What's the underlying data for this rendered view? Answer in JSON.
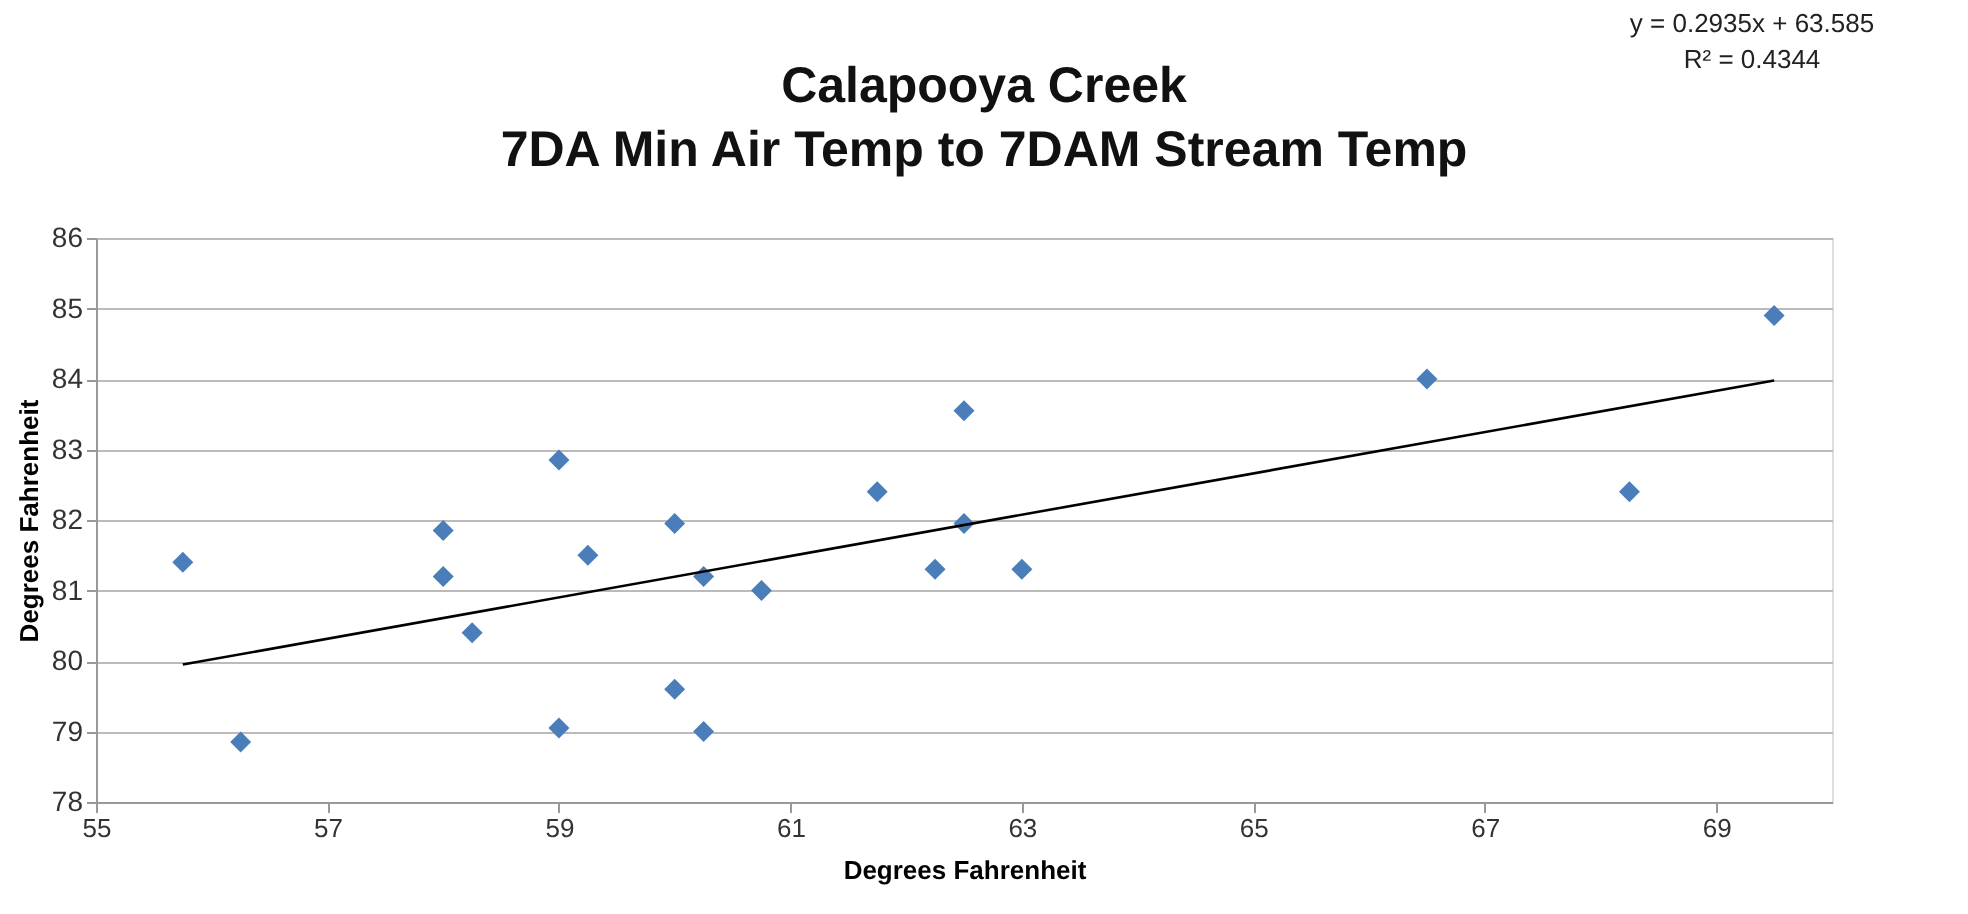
{
  "chart_data": {
    "type": "scatter",
    "title": "Calapooya Creek\n7DA Min Air Temp to 7DAM Stream Temp",
    "xlabel": "Degrees Fahrenheit",
    "ylabel": "Degrees Fahrenheit",
    "xlim": [
      55,
      70
    ],
    "xticks": [
      55,
      57,
      59,
      61,
      63,
      65,
      67,
      69
    ],
    "ylim": [
      78,
      86
    ],
    "yticks": [
      78,
      79,
      80,
      81,
      82,
      83,
      84,
      85,
      86
    ],
    "grid": "y",
    "series": [
      {
        "color": "#4a7ebb",
        "marker": "diamond",
        "x": [
          55.75,
          56.25,
          58,
          58,
          58.25,
          59,
          59,
          59.25,
          60,
          60,
          60.25,
          60.25,
          60.75,
          61.75,
          62.25,
          62.5,
          62.5,
          63,
          66.5,
          68.25,
          69.5
        ],
        "values": [
          81.4,
          78.85,
          81.85,
          81.2,
          80.4,
          82.85,
          79.05,
          81.5,
          81.95,
          79.6,
          81.2,
          79.0,
          81.0,
          82.4,
          81.3,
          83.55,
          81.95,
          81.3,
          84.0,
          82.4,
          84.9
        ]
      },
      {
        "type": "line",
        "color": "#000000",
        "line_style": "solid",
        "marker": "none",
        "x": [
          55.75,
          69.5
        ],
        "values": [
          79.95,
          83.98
        ]
      }
    ],
    "annotations": [
      "y = 0.2935x + 63.585\nR² = 0.4344"
    ]
  }
}
